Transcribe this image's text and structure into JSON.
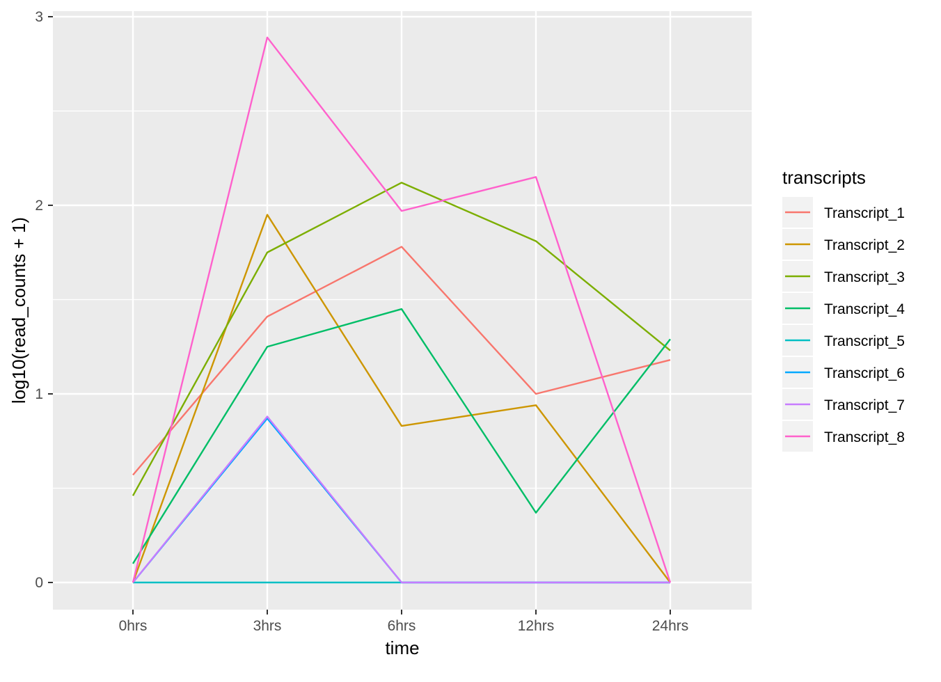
{
  "chart_data": {
    "type": "line",
    "title": "",
    "xlabel": "time",
    "ylabel": "log10(read_counts + 1)",
    "categories": [
      "0hrs",
      "3hrs",
      "6hrs",
      "12hrs",
      "24hrs"
    ],
    "ylim": [
      -0.14,
      3.02
    ],
    "yticks": [
      0,
      1,
      2,
      3
    ],
    "ytick_labels": [
      "0",
      "1",
      "2",
      "3"
    ],
    "grid": true,
    "legend": {
      "title": "transcripts",
      "position": "right"
    },
    "series": [
      {
        "name": "Transcript_1",
        "color": "#F8766D",
        "values": [
          0.57,
          1.41,
          1.78,
          1.0,
          1.18
        ]
      },
      {
        "name": "Transcript_2",
        "color": "#CD9600",
        "values": [
          0.0,
          1.95,
          0.83,
          0.94,
          0.0
        ]
      },
      {
        "name": "Transcript_3",
        "color": "#7CAE00",
        "values": [
          0.46,
          1.75,
          2.12,
          1.81,
          1.23
        ]
      },
      {
        "name": "Transcript_4",
        "color": "#00BE67",
        "values": [
          0.1,
          1.25,
          1.45,
          0.37,
          1.29
        ]
      },
      {
        "name": "Transcript_5",
        "color": "#00BFC4",
        "values": [
          0.0,
          0.0,
          0.0,
          0.0,
          0.0
        ]
      },
      {
        "name": "Transcript_6",
        "color": "#00A9FF",
        "values": [
          0.0,
          0.87,
          0.0,
          0.0,
          0.0
        ]
      },
      {
        "name": "Transcript_7",
        "color": "#C77CFF",
        "values": [
          0.0,
          0.88,
          0.0,
          0.0,
          0.0
        ]
      },
      {
        "name": "Transcript_8",
        "color": "#FF61CC",
        "values": [
          0.0,
          2.89,
          1.97,
          2.15,
          0.0
        ]
      }
    ]
  }
}
